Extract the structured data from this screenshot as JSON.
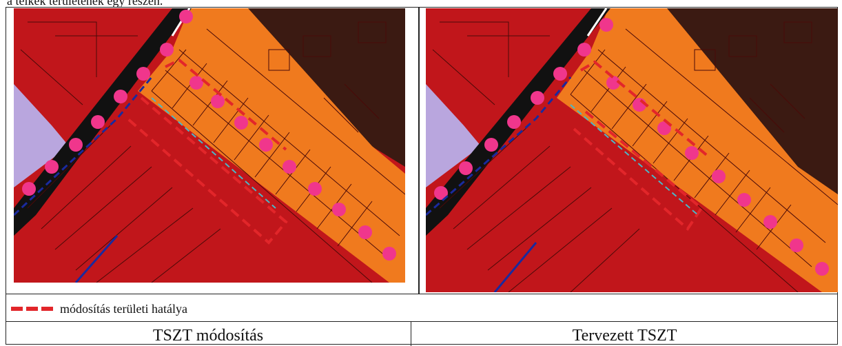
{
  "header": {
    "text": "a telkek területének egy részén."
  },
  "legend": {
    "label": "módosítás területi hatálya",
    "color": "#e2262a"
  },
  "captions": {
    "left": "TSZT módosítás",
    "right": "Tervezett TSZT"
  },
  "colors": {
    "residential_orange": "#f07a1e",
    "commercial_red": "#c1161b",
    "dark_brown": "#3b1a12",
    "lavender": "#b9a6de",
    "road_black": "#111111",
    "pink_dots": "#f0368c",
    "boundary_blue": "#1a2a9e",
    "cyan_dash": "#4ab8c8"
  }
}
